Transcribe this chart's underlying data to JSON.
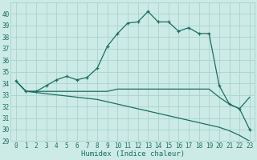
{
  "x": [
    0,
    1,
    2,
    3,
    4,
    5,
    6,
    7,
    8,
    9,
    10,
    11,
    12,
    13,
    14,
    15,
    16,
    17,
    18,
    19,
    20,
    21,
    22,
    23
  ],
  "line_main": [
    34.2,
    33.3,
    33.3,
    33.8,
    34.3,
    34.6,
    34.3,
    34.5,
    35.3,
    37.2,
    38.3,
    39.2,
    39.3,
    40.2,
    39.3,
    39.3,
    38.5,
    38.8,
    38.3,
    38.3,
    33.8,
    32.2,
    31.8,
    30.0
  ],
  "line_flat": [
    34.2,
    33.3,
    33.3,
    33.3,
    33.3,
    33.3,
    33.3,
    33.3,
    33.3,
    33.3,
    33.5,
    33.5,
    33.5,
    33.5,
    33.5,
    33.5,
    33.5,
    33.5,
    33.5,
    33.5,
    32.8,
    32.2,
    31.8,
    32.8
  ],
  "line_diag": [
    34.2,
    33.3,
    33.2,
    33.1,
    33.0,
    32.9,
    32.8,
    32.7,
    32.6,
    32.4,
    32.2,
    32.0,
    31.8,
    31.6,
    31.4,
    31.2,
    31.0,
    30.8,
    30.6,
    30.4,
    30.2,
    29.9,
    29.5,
    29.0
  ],
  "color": "#1e6e62",
  "bg_color": "#cceae6",
  "grid_color": "#a8d4d0",
  "xlabel": "Humidex (Indice chaleur)",
  "ylim": [
    29,
    41
  ],
  "xlim": [
    -0.5,
    23.5
  ],
  "yticks": [
    29,
    30,
    31,
    32,
    33,
    34,
    35,
    36,
    37,
    38,
    39,
    40
  ],
  "xticks": [
    0,
    1,
    2,
    3,
    4,
    5,
    6,
    7,
    8,
    9,
    10,
    11,
    12,
    13,
    14,
    15,
    16,
    17,
    18,
    19,
    20,
    21,
    22,
    23
  ],
  "xlabel_fontsize": 6.5,
  "tick_fontsize": 5.5,
  "linewidth": 0.9,
  "marker_size": 3.5
}
